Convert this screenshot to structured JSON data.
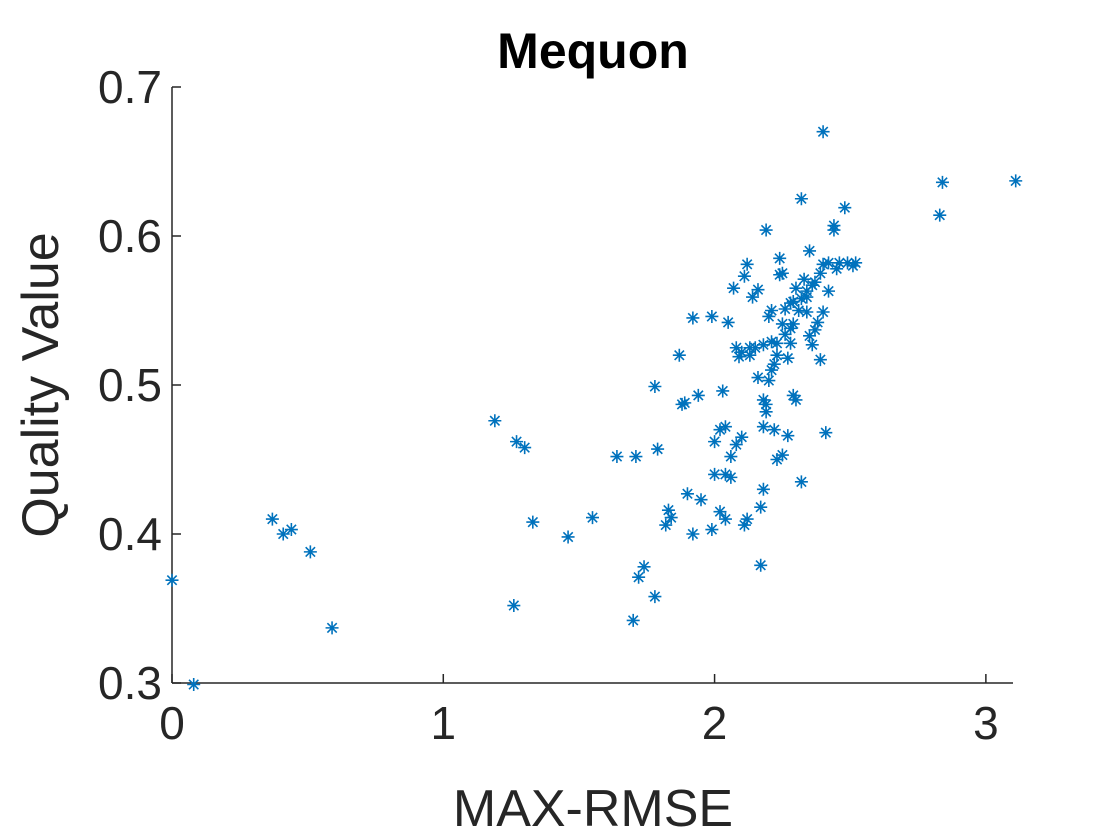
{
  "chart_data": {
    "type": "scatter",
    "title": "Mequon",
    "xlabel": "MAX-RMSE",
    "ylabel": "Quality Value",
    "xlim": [
      0,
      3.1
    ],
    "ylim": [
      0.3,
      0.7
    ],
    "xticks": [
      0,
      1,
      2,
      3
    ],
    "xtick_labels": [
      "0",
      "1",
      "2",
      "3"
    ],
    "yticks": [
      0.3,
      0.4,
      0.5,
      0.6,
      0.7
    ],
    "ytick_labels": [
      "0.3",
      "0.4",
      "0.5",
      "0.6",
      "0.7"
    ],
    "grid": false,
    "marker": "*",
    "color": "#0072BD",
    "series": [
      {
        "points": [
          [
            0.0,
            0.369
          ],
          [
            0.08,
            0.299
          ],
          [
            0.37,
            0.41
          ],
          [
            0.41,
            0.4
          ],
          [
            0.44,
            0.403
          ],
          [
            0.51,
            0.388
          ],
          [
            0.59,
            0.337
          ],
          [
            1.19,
            0.476
          ],
          [
            1.26,
            0.352
          ],
          [
            1.27,
            0.462
          ],
          [
            1.3,
            0.458
          ],
          [
            1.33,
            0.408
          ],
          [
            1.46,
            0.398
          ],
          [
            1.55,
            0.411
          ],
          [
            1.64,
            0.452
          ],
          [
            1.7,
            0.342
          ],
          [
            1.71,
            0.452
          ],
          [
            1.72,
            0.371
          ],
          [
            1.74,
            0.378
          ],
          [
            1.78,
            0.358
          ],
          [
            1.78,
            0.499
          ],
          [
            1.79,
            0.457
          ],
          [
            1.82,
            0.406
          ],
          [
            1.83,
            0.416
          ],
          [
            1.84,
            0.411
          ],
          [
            1.87,
            0.52
          ],
          [
            1.88,
            0.487
          ],
          [
            1.89,
            0.488
          ],
          [
            1.9,
            0.427
          ],
          [
            1.92,
            0.545
          ],
          [
            1.92,
            0.4
          ],
          [
            1.94,
            0.493
          ],
          [
            1.95,
            0.423
          ],
          [
            1.99,
            0.546
          ],
          [
            1.99,
            0.403
          ],
          [
            2.0,
            0.462
          ],
          [
            2.0,
            0.44
          ],
          [
            2.02,
            0.47
          ],
          [
            2.02,
            0.415
          ],
          [
            2.03,
            0.496
          ],
          [
            2.04,
            0.44
          ],
          [
            2.04,
            0.41
          ],
          [
            2.04,
            0.472
          ],
          [
            2.05,
            0.542
          ],
          [
            2.06,
            0.438
          ],
          [
            2.06,
            0.452
          ],
          [
            2.07,
            0.565
          ],
          [
            2.08,
            0.525
          ],
          [
            2.08,
            0.46
          ],
          [
            2.09,
            0.519
          ],
          [
            2.1,
            0.465
          ],
          [
            2.1,
            0.522
          ],
          [
            2.11,
            0.573
          ],
          [
            2.11,
            0.406
          ],
          [
            2.12,
            0.41
          ],
          [
            2.12,
            0.581
          ],
          [
            2.13,
            0.52
          ],
          [
            2.13,
            0.525
          ],
          [
            2.14,
            0.559
          ],
          [
            2.15,
            0.525
          ],
          [
            2.16,
            0.505
          ],
          [
            2.16,
            0.564
          ],
          [
            2.17,
            0.379
          ],
          [
            2.17,
            0.418
          ],
          [
            2.18,
            0.43
          ],
          [
            2.18,
            0.527
          ],
          [
            2.18,
            0.472
          ],
          [
            2.18,
            0.49
          ],
          [
            2.19,
            0.604
          ],
          [
            2.19,
            0.482
          ],
          [
            2.19,
            0.487
          ],
          [
            2.2,
            0.546
          ],
          [
            2.2,
            0.503
          ],
          [
            2.21,
            0.529
          ],
          [
            2.21,
            0.55
          ],
          [
            2.21,
            0.51
          ],
          [
            2.22,
            0.47
          ],
          [
            2.22,
            0.514
          ],
          [
            2.23,
            0.45
          ],
          [
            2.23,
            0.528
          ],
          [
            2.23,
            0.52
          ],
          [
            2.24,
            0.574
          ],
          [
            2.24,
            0.585
          ],
          [
            2.25,
            0.453
          ],
          [
            2.25,
            0.541
          ],
          [
            2.25,
            0.575
          ],
          [
            2.26,
            0.551
          ],
          [
            2.26,
            0.534
          ],
          [
            2.27,
            0.518
          ],
          [
            2.27,
            0.466
          ],
          [
            2.28,
            0.555
          ],
          [
            2.28,
            0.538
          ],
          [
            2.28,
            0.528
          ],
          [
            2.29,
            0.541
          ],
          [
            2.29,
            0.493
          ],
          [
            2.29,
            0.556
          ],
          [
            2.3,
            0.49
          ],
          [
            2.3,
            0.565
          ],
          [
            2.31,
            0.55
          ],
          [
            2.32,
            0.625
          ],
          [
            2.32,
            0.435
          ],
          [
            2.32,
            0.558
          ],
          [
            2.33,
            0.571
          ],
          [
            2.34,
            0.559
          ],
          [
            2.34,
            0.549
          ],
          [
            2.34,
            0.563
          ],
          [
            2.35,
            0.59
          ],
          [
            2.35,
            0.533
          ],
          [
            2.36,
            0.567
          ],
          [
            2.36,
            0.527
          ],
          [
            2.37,
            0.537
          ],
          [
            2.37,
            0.569
          ],
          [
            2.38,
            0.542
          ],
          [
            2.39,
            0.517
          ],
          [
            2.39,
            0.575
          ],
          [
            2.4,
            0.67
          ],
          [
            2.4,
            0.581
          ],
          [
            2.4,
            0.549
          ],
          [
            2.41,
            0.468
          ],
          [
            2.42,
            0.563
          ],
          [
            2.42,
            0.582
          ],
          [
            2.44,
            0.607
          ],
          [
            2.44,
            0.604
          ],
          [
            2.45,
            0.578
          ],
          [
            2.46,
            0.582
          ],
          [
            2.48,
            0.619
          ],
          [
            2.49,
            0.582
          ],
          [
            2.51,
            0.58
          ],
          [
            2.52,
            0.582
          ],
          [
            2.83,
            0.614
          ],
          [
            2.84,
            0.636
          ],
          [
            3.11,
            0.637
          ]
        ]
      }
    ]
  }
}
